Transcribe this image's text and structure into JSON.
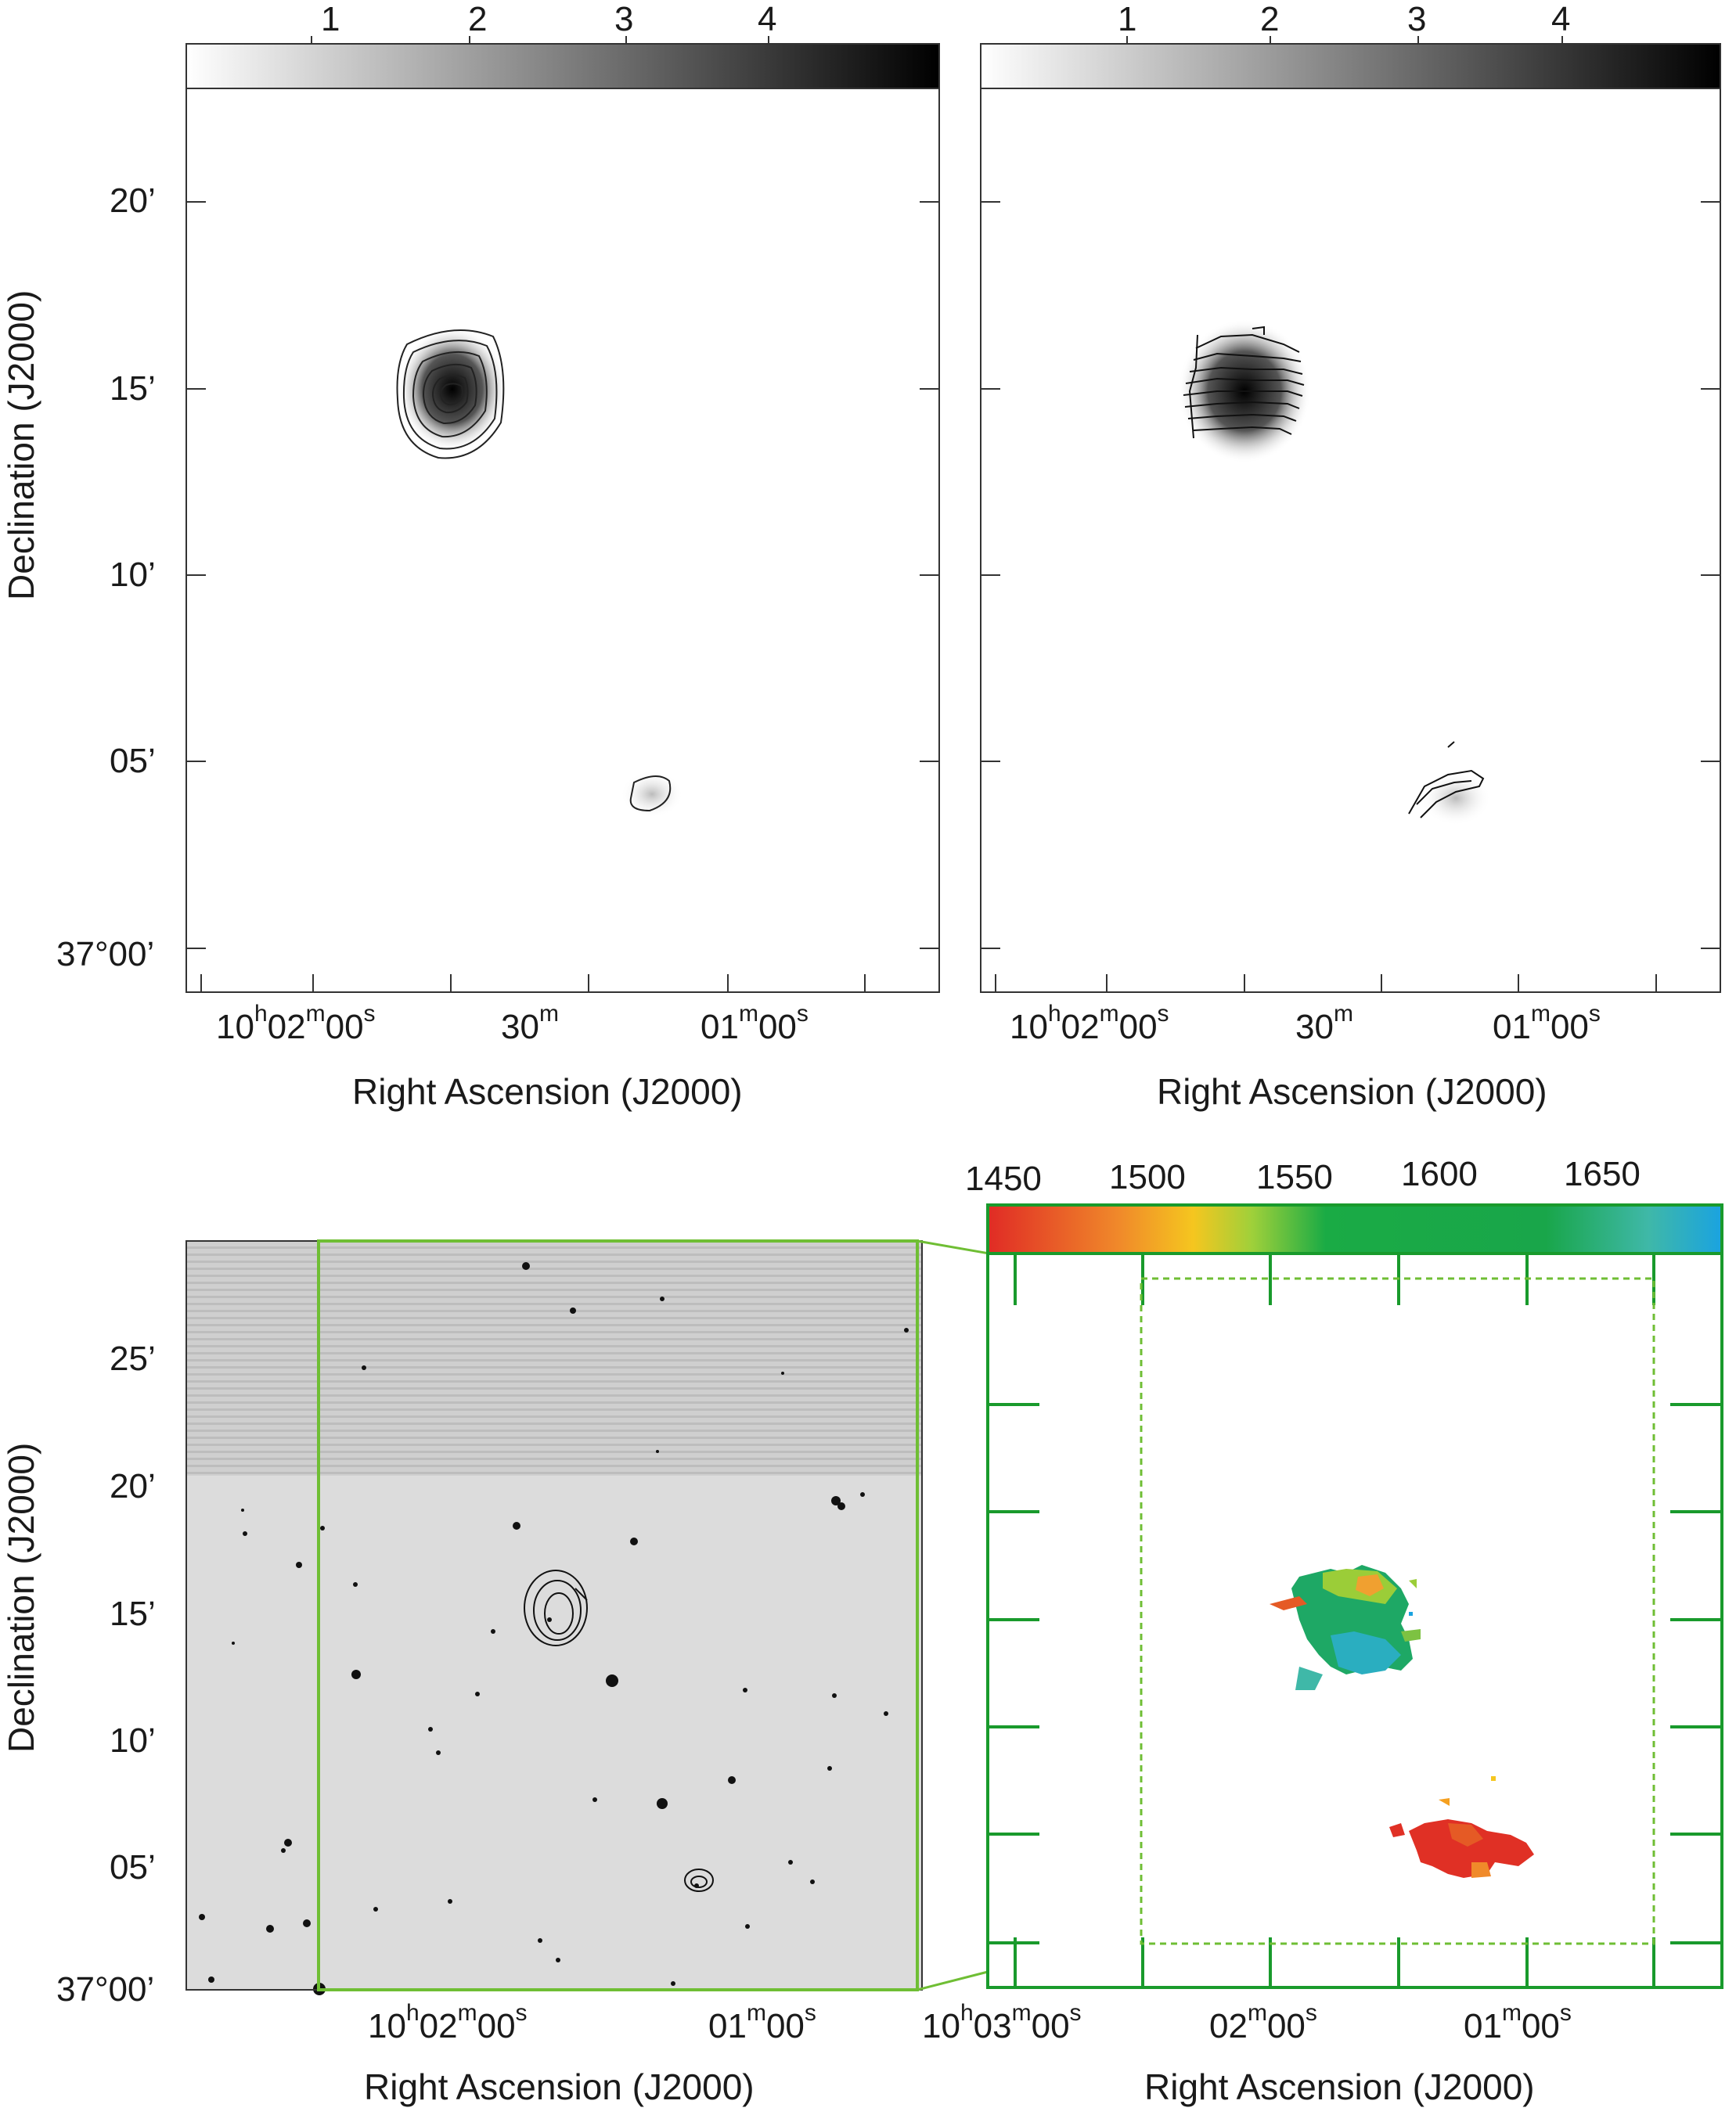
{
  "figure": {
    "colors": {
      "frame": "#333333",
      "green_box": "#6fbe34",
      "green_frame": "#199a2c",
      "optical_bg": "#dcdcdc"
    },
    "top_left": {
      "colorbar_ticks": [
        "1",
        "2",
        "3",
        "4"
      ],
      "colorbar": "grayscale",
      "y_ticks": [
        "20’",
        "15’",
        "10’",
        "05’",
        "37°00’"
      ],
      "x_ticks": [
        {
          "h": "10",
          "hs": "h",
          "m": "02",
          "ms": "m",
          "s": "00",
          "ss": "s"
        },
        {
          "m": "30",
          "ms": "m"
        },
        {
          "m": "01",
          "ms": "m",
          "s": "00",
          "ss": "s"
        }
      ],
      "xlabel": "Right Ascension (J2000)",
      "ylabel": "Declination (J2000)"
    },
    "top_right": {
      "colorbar_ticks": [
        "1",
        "2",
        "3",
        "4"
      ],
      "colorbar": "grayscale",
      "x_ticks": [
        {
          "h": "10",
          "hs": "h",
          "m": "02",
          "ms": "m",
          "s": "00",
          "ss": "s"
        },
        {
          "m": "30",
          "ms": "m"
        },
        {
          "m": "01",
          "ms": "m",
          "s": "00",
          "ss": "s"
        }
      ],
      "xlabel": "Right Ascension (J2000)"
    },
    "bottom_left": {
      "y_ticks": [
        "25’",
        "20’",
        "15’",
        "10’",
        "05’",
        "37°00’"
      ],
      "x_ticks": [
        {
          "h": "10",
          "hs": "h",
          "m": "02",
          "ms": "m",
          "s": "00",
          "ss": "s"
        },
        {
          "m": "01",
          "ms": "m",
          "s": "00",
          "ss": "s"
        }
      ],
      "xlabel": "Right Ascension (J2000)",
      "ylabel": "Declination (J2000)"
    },
    "bottom_right": {
      "colorbar_ticks": [
        "1450",
        "1500",
        "1550",
        "1600",
        "1650"
      ],
      "colorbar": "velocity (red-orange-yellow-green-cyan)",
      "x_ticks": [
        {
          "h": "10",
          "hs": "h",
          "m": "03",
          "ms": "m",
          "s": "00",
          "ss": "s"
        },
        {
          "m": "02",
          "ms": "m",
          "s": "00",
          "ss": "s"
        },
        {
          "m": "01",
          "ms": "m",
          "s": "00",
          "ss": "s"
        }
      ],
      "xlabel": "Right Ascension (J2000)"
    }
  }
}
